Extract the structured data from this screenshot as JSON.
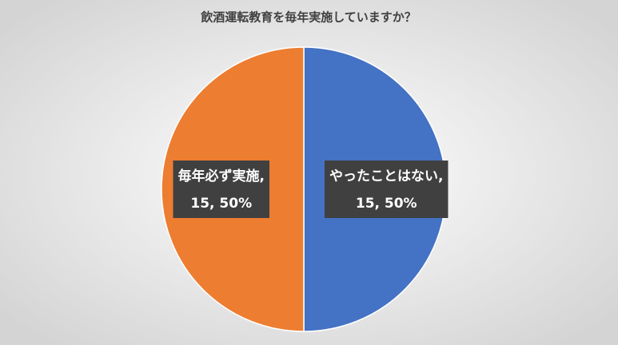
{
  "chart_data": {
    "type": "pie",
    "title": "飲酒運転教育を毎年実施していますか？",
    "categories": [
      "やったことはない,",
      "毎年必ず実施,"
    ],
    "values": [
      15,
      15
    ],
    "value_labels": [
      "15, 50%",
      "15, 50%"
    ],
    "colors": [
      "#4472c4",
      "#ed7d31"
    ]
  }
}
